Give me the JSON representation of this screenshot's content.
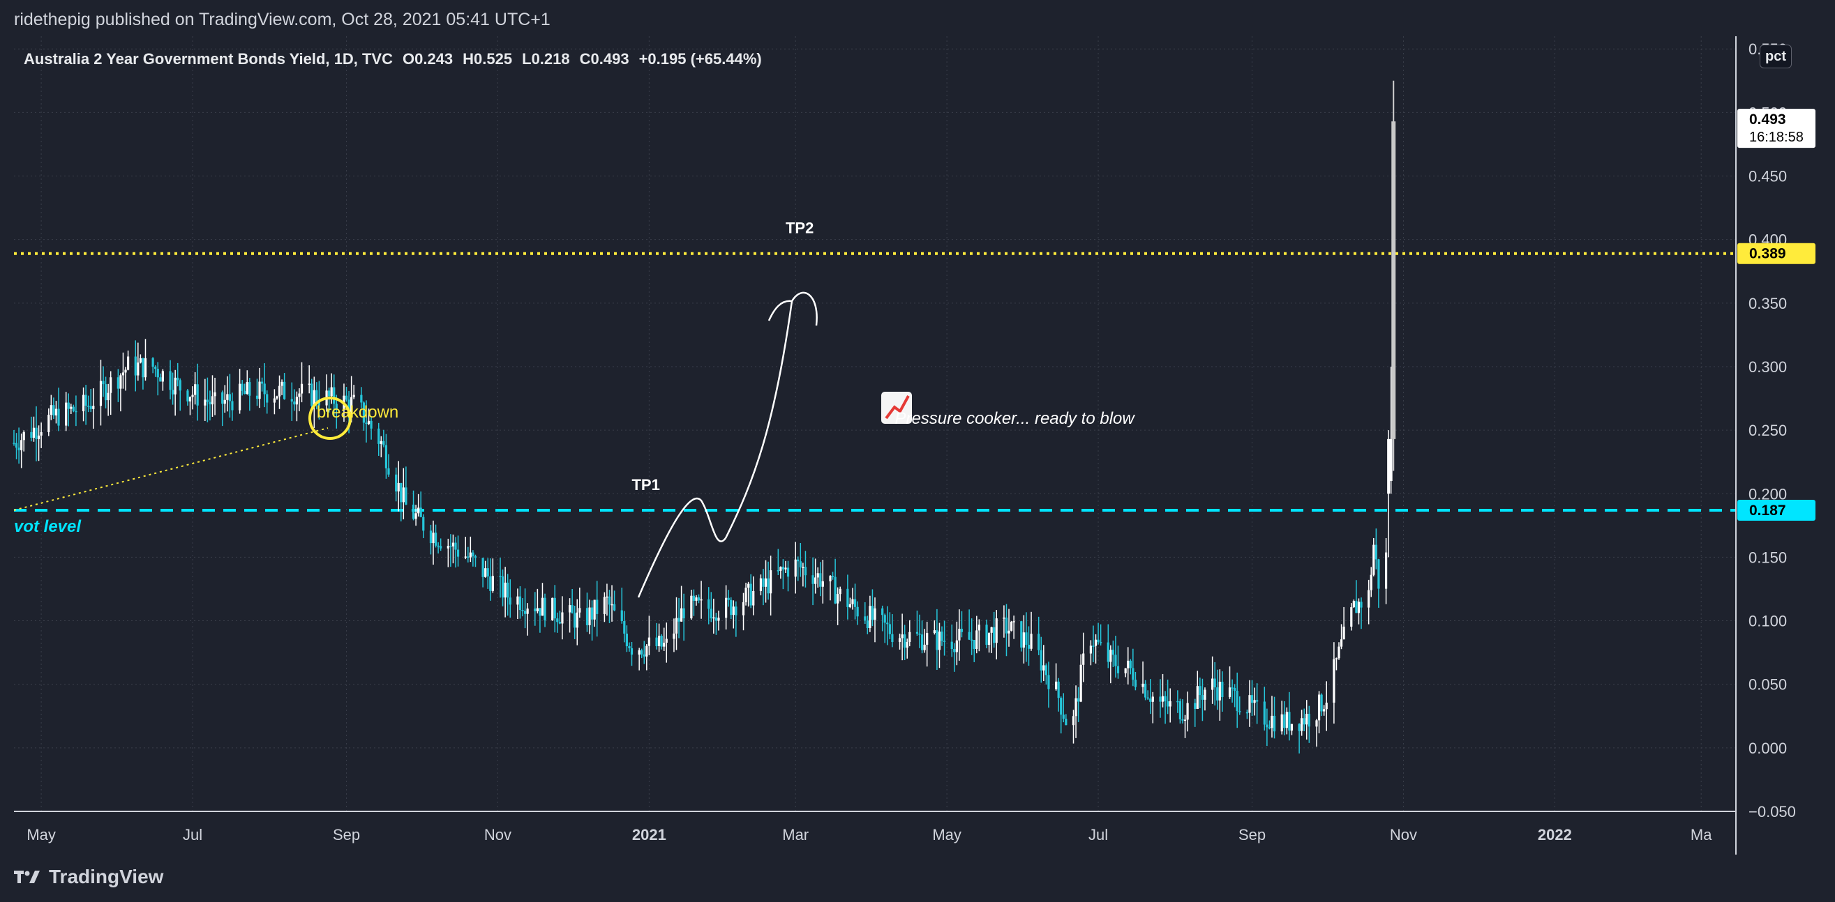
{
  "header": {
    "publisher": "ridethepig published on TradingView.com, Oct 28, 2021 05:41 UTC+1"
  },
  "legend": {
    "symbol": "Australia 2 Year Government Bonds Yield, 1D, TVC",
    "open": "O0.243",
    "high": "H0.525",
    "low": "L0.218",
    "close": "C0.493",
    "change": "+0.195 (+65.44%)"
  },
  "price_axis": {
    "unit_badge": "pct",
    "last_price_label": "0.493",
    "countdown": "16:18:58",
    "yellow_level_label": "0.389",
    "cyan_level_label": "0.187"
  },
  "footer": {
    "brand": "TradingView"
  },
  "colors": {
    "background": "#1e222d",
    "up_candle": "#ffffff",
    "down_candle": "#26c6da",
    "yellow_level": "#ffeb3b",
    "cyan_level": "#00e5ff",
    "grid": "#3a3e4a",
    "annotation_text": "#ffffff"
  },
  "chart_data": {
    "type": "candlestick",
    "title": "Australia 2 Year Government Bonds Yield, 1D, TVC",
    "ylim": [
      -0.05,
      0.56
    ],
    "y_ticks": [
      "0.550",
      "0.500",
      "0.450",
      "0.400",
      "0.350",
      "0.300",
      "0.250",
      "0.200",
      "0.150",
      "0.100",
      "0.050",
      "0.000",
      "−0.050"
    ],
    "x_tick_labels": [
      "May",
      "Jul",
      "Sep",
      "Nov",
      "2021",
      "Mar",
      "May",
      "Jul",
      "Sep",
      "Nov",
      "2022",
      "Ma"
    ],
    "x_range": [
      "2020-04-20",
      "2022-03-15"
    ],
    "grid": true,
    "last_close": 0.493,
    "ohlc_last": {
      "open": 0.243,
      "high": 0.525,
      "low": 0.218,
      "close": 0.493
    },
    "price_path": [
      [
        "2020-04-20",
        0.24
      ],
      [
        "2020-05-05",
        0.26
      ],
      [
        "2020-05-20",
        0.27
      ],
      [
        "2020-06-05",
        0.3
      ],
      [
        "2020-06-15",
        0.3
      ],
      [
        "2020-06-25",
        0.285
      ],
      [
        "2020-07-10",
        0.27
      ],
      [
        "2020-07-25",
        0.28
      ],
      [
        "2020-08-10",
        0.28
      ],
      [
        "2020-08-25",
        0.275
      ],
      [
        "2020-09-05",
        0.27
      ],
      [
        "2020-09-15",
        0.24
      ],
      [
        "2020-09-25",
        0.19
      ],
      [
        "2020-10-05",
        0.17
      ],
      [
        "2020-10-20",
        0.15
      ],
      [
        "2020-11-05",
        0.12
      ],
      [
        "2020-11-20",
        0.11
      ],
      [
        "2020-12-05",
        0.1
      ],
      [
        "2020-12-15",
        0.115
      ],
      [
        "2020-12-25",
        0.08
      ],
      [
        "2021-01-08",
        0.08
      ],
      [
        "2021-01-15",
        0.11
      ],
      [
        "2021-02-01",
        0.11
      ],
      [
        "2021-02-15",
        0.125
      ],
      [
        "2021-02-28",
        0.145
      ],
      [
        "2021-03-10",
        0.135
      ],
      [
        "2021-03-25",
        0.11
      ],
      [
        "2021-04-10",
        0.09
      ],
      [
        "2021-04-25",
        0.085
      ],
      [
        "2021-05-10",
        0.085
      ],
      [
        "2021-05-25",
        0.095
      ],
      [
        "2021-06-05",
        0.08
      ],
      [
        "2021-06-15",
        0.04
      ],
      [
        "2021-06-20",
        0.01
      ],
      [
        "2021-06-27",
        0.09
      ],
      [
        "2021-07-05",
        0.07
      ],
      [
        "2021-07-15",
        0.06
      ],
      [
        "2021-07-25",
        0.035
      ],
      [
        "2021-08-05",
        0.03
      ],
      [
        "2021-08-15",
        0.05
      ],
      [
        "2021-08-25",
        0.04
      ],
      [
        "2021-09-05",
        0.025
      ],
      [
        "2021-09-15",
        0.02
      ],
      [
        "2021-09-25",
        0.025
      ],
      [
        "2021-10-01",
        0.04
      ],
      [
        "2021-10-07",
        0.08
      ],
      [
        "2021-10-12",
        0.11
      ],
      [
        "2021-10-18",
        0.12
      ],
      [
        "2021-10-20",
        0.16
      ],
      [
        "2021-10-22",
        0.13
      ],
      [
        "2021-10-25",
        0.15
      ],
      [
        "2021-10-26",
        0.22
      ],
      [
        "2021-10-27",
        0.243
      ],
      [
        "2021-10-28",
        0.493
      ]
    ],
    "horizontal_levels": [
      {
        "value": 0.389,
        "style": "dotted",
        "color": "yellow"
      },
      {
        "value": 0.187,
        "style": "dashed",
        "color": "cyan"
      }
    ],
    "annotations": [
      {
        "text": "breakdown",
        "date": "2020-08-20",
        "value": 0.26
      },
      {
        "text": "vot level",
        "date": "2020-04-20",
        "value": 0.17
      },
      {
        "text": "TP1",
        "date": "2020-12-25",
        "value": 0.203
      },
      {
        "text": "TP2",
        "date": "2021-02-25",
        "value": 0.405
      },
      {
        "text": "Pressure cooker... ready to blow",
        "date": "2021-04-10",
        "value": 0.255
      }
    ]
  }
}
